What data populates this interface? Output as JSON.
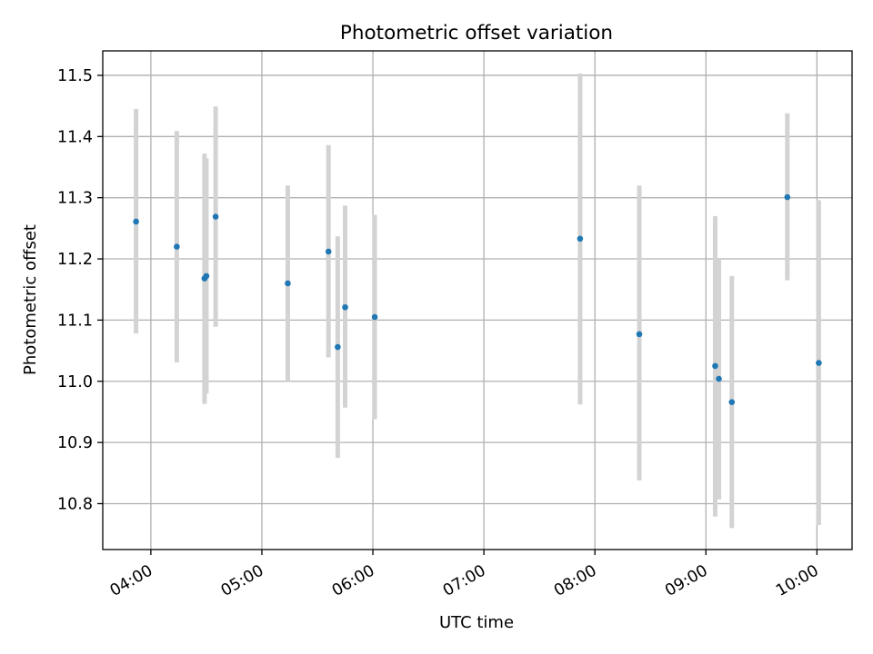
{
  "chart_data": {
    "type": "scatter",
    "title": "Photometric offset variation",
    "xlabel": "UTC time",
    "ylabel": "Photometric offset",
    "grid": true,
    "x_unit": "UTC hh:mm",
    "xlim": [
      "03:34",
      "10:19"
    ],
    "ylim": [
      10.725,
      11.54
    ],
    "x_ticks": [
      "04:00",
      "05:00",
      "06:00",
      "07:00",
      "08:00",
      "09:00",
      "10:00"
    ],
    "y_ticks": [
      "10.8",
      "10.9",
      "11.0",
      "11.1",
      "11.2",
      "11.3",
      "11.4",
      "11.5"
    ],
    "colors": {
      "point": "#1f77b4",
      "errorbar": "#d3d3d3",
      "grid": "#b0b0b0"
    },
    "points": [
      {
        "x": "03:52",
        "y": 11.261,
        "lo": 11.078,
        "hi": 11.445
      },
      {
        "x": "04:14",
        "y": 11.22,
        "lo": 11.031,
        "hi": 11.409
      },
      {
        "x": "04:29",
        "y": 11.168,
        "lo": 10.963,
        "hi": 11.372
      },
      {
        "x": "04:30",
        "y": 11.172,
        "lo": 10.98,
        "hi": 11.364
      },
      {
        "x": "04:35",
        "y": 11.269,
        "lo": 11.089,
        "hi": 11.449
      },
      {
        "x": "05:14",
        "y": 11.16,
        "lo": 11.0,
        "hi": 11.32
      },
      {
        "x": "05:36",
        "y": 11.212,
        "lo": 11.039,
        "hi": 11.386
      },
      {
        "x": "05:41",
        "y": 11.056,
        "lo": 10.875,
        "hi": 11.237
      },
      {
        "x": "05:45",
        "y": 11.121,
        "lo": 10.957,
        "hi": 11.287
      },
      {
        "x": "06:01",
        "y": 11.105,
        "lo": 10.938,
        "hi": 11.272
      },
      {
        "x": "07:52",
        "y": 11.233,
        "lo": 10.962,
        "hi": 11.503
      },
      {
        "x": "08:24",
        "y": 11.077,
        "lo": 10.838,
        "hi": 11.32
      },
      {
        "x": "09:05",
        "y": 11.025,
        "lo": 10.779,
        "hi": 11.27
      },
      {
        "x": "09:07",
        "y": 11.004,
        "lo": 10.807,
        "hi": 11.2
      },
      {
        "x": "09:14",
        "y": 10.966,
        "lo": 10.76,
        "hi": 11.172
      },
      {
        "x": "09:44",
        "y": 11.301,
        "lo": 11.165,
        "hi": 11.438
      },
      {
        "x": "10:01",
        "y": 11.03,
        "lo": 10.765,
        "hi": 11.296
      }
    ]
  }
}
